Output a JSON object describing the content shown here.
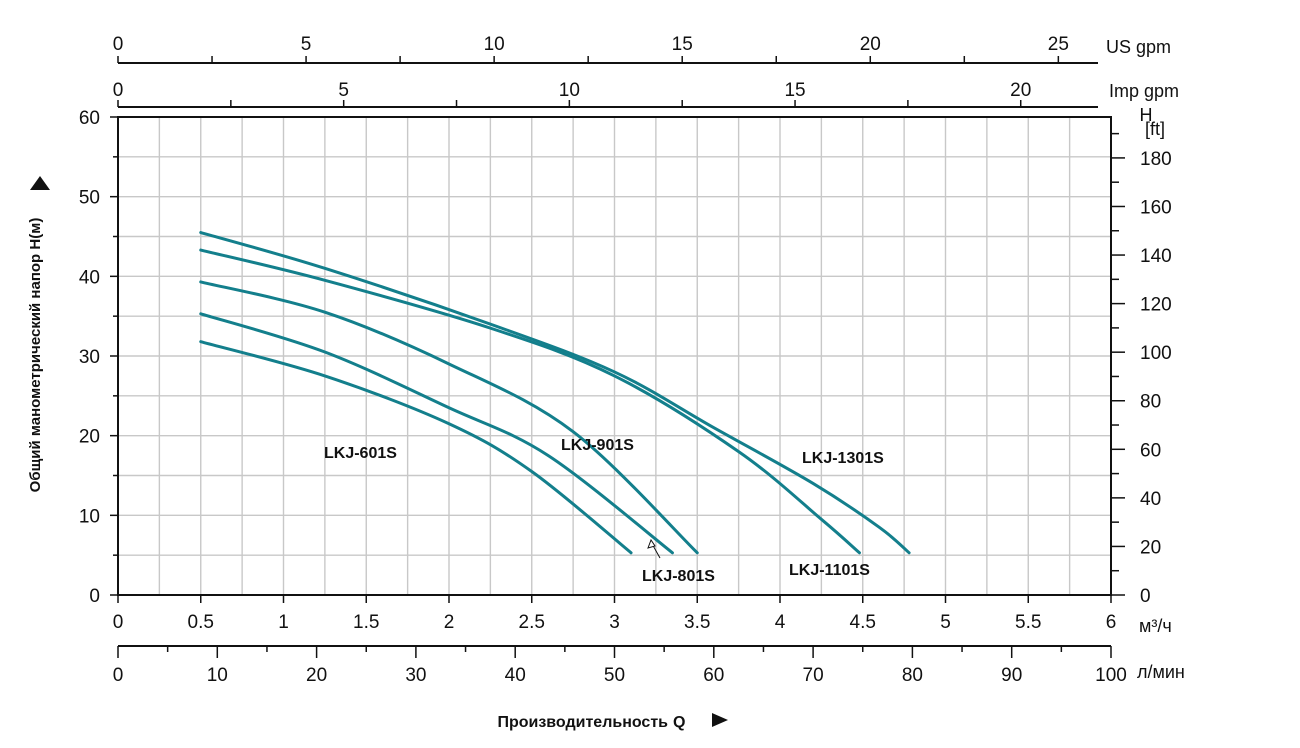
{
  "chart_data": {
    "type": "line",
    "ylabel": "Общий манометрический напор H(м)",
    "xlabel_text": "Производительность",
    "xlabel_symbol": "Q",
    "x_m3h": {
      "unit": "м³/ч",
      "range": [
        0,
        6
      ],
      "ticks": [
        "0",
        "0.5",
        "1",
        "1.5",
        "2",
        "2.5",
        "3",
        "3.5",
        "4",
        "4.5",
        "5",
        "5.5",
        "6"
      ]
    },
    "x_lmin": {
      "unit": "л/мин",
      "range": [
        0,
        100
      ],
      "ticks": [
        "0",
        "10",
        "20",
        "30",
        "40",
        "50",
        "60",
        "70",
        "80",
        "90",
        "100"
      ]
    },
    "x_usgpm": {
      "unit": "US gpm",
      "range": [
        0,
        26.4
      ],
      "ticks": [
        "0",
        "5",
        "10",
        "15",
        "20",
        "25"
      ]
    },
    "x_impgpm": {
      "unit": "Imp gpm",
      "range": [
        0,
        22
      ],
      "ticks": [
        "0",
        "5",
        "10",
        "15",
        "20"
      ]
    },
    "y_m": {
      "range": [
        0,
        60
      ],
      "ticks": [
        "0",
        "10",
        "20",
        "30",
        "40",
        "50",
        "60"
      ]
    },
    "y_ft": {
      "unit_h": "H",
      "unit_ft": "[ft]",
      "range": [
        0,
        196.85
      ],
      "ticks": [
        "0",
        "20",
        "40",
        "60",
        "80",
        "100",
        "120",
        "140",
        "160",
        "180"
      ]
    },
    "grid": true,
    "series": [
      {
        "name": "LKJ-601S",
        "x": [
          0.5,
          1.25,
          2.0,
          2.5,
          3.1
        ],
        "y": [
          31.8,
          27.5,
          21.5,
          15.5,
          5.3
        ]
      },
      {
        "name": "LKJ-801S",
        "x": [
          0.5,
          1.25,
          2.0,
          2.6,
          3.35
        ],
        "y": [
          35.3,
          30.5,
          23.5,
          17.5,
          5.3
        ]
      },
      {
        "name": "LKJ-901S",
        "x": [
          0.5,
          1.25,
          2.0,
          2.75,
          3.5
        ],
        "y": [
          39.3,
          35.5,
          29.0,
          20.5,
          5.3
        ]
      },
      {
        "name": "LKJ-1101S",
        "x": [
          0.5,
          1.25,
          2.25,
          3.0,
          3.75,
          4.25,
          4.48
        ],
        "y": [
          43.3,
          39.5,
          33.5,
          27.5,
          18.0,
          9.5,
          5.3
        ]
      },
      {
        "name": "LKJ-1301S",
        "x": [
          0.5,
          1.25,
          2.25,
          3.0,
          3.6,
          4.2,
          4.6,
          4.78
        ],
        "y": [
          45.5,
          41.0,
          34.0,
          28.0,
          21.0,
          14.0,
          8.5,
          5.3
        ]
      }
    ],
    "labels": [
      "LKJ-601S",
      "LKJ-801S",
      "LKJ-901S",
      "LKJ-1101S",
      "LKJ-1301S"
    ]
  }
}
